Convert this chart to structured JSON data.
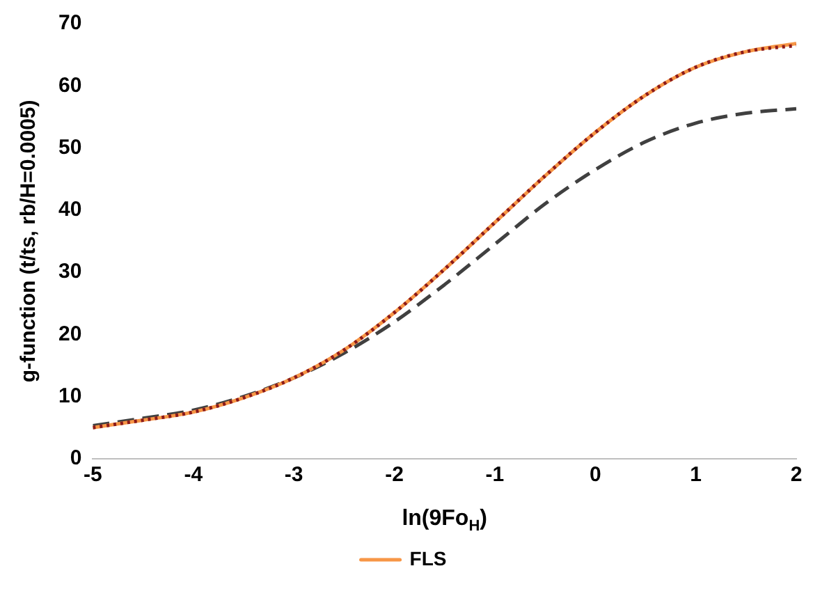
{
  "chart_data": {
    "type": "line",
    "xlabel": "ln(9Fo$_{H}$)",
    "ylabel": "g-function (t/ts, rb/H=0.0005)",
    "xlim": [
      -5,
      2
    ],
    "xticks": [
      -5,
      -4,
      -3,
      -2,
      -1,
      0,
      1,
      2
    ],
    "ylim": [
      0,
      70
    ],
    "yticks": [
      0,
      10,
      20,
      30,
      40,
      50,
      60,
      70
    ],
    "grid": false,
    "legend": "bottom",
    "marker": "none",
    "series": [
      {
        "color": "#404040",
        "line_style": "dashed",
        "x": [
          -5,
          -4.5,
          -4,
          -3.5,
          -3,
          -2.5,
          -2,
          -1.5,
          -1,
          -0.5,
          0,
          0.5,
          1,
          1.5,
          2
        ],
        "values": [
          5.3,
          6.5,
          7.8,
          10,
          13,
          17,
          22,
          28,
          34.5,
          41,
          46.5,
          51,
          54,
          55.6,
          56.3
        ]
      },
      {
        "name": "FLS",
        "color": "#f79646",
        "line_style": "solid",
        "x": [
          -5,
          -4.5,
          -4,
          -3.5,
          -3,
          -2.5,
          -2,
          -1.5,
          -1,
          -0.5,
          0,
          0.5,
          1,
          1.5,
          2
        ],
        "values": [
          5,
          6.2,
          7.5,
          9.8,
          13,
          17.5,
          23.5,
          30.5,
          38,
          45.5,
          52.5,
          58.5,
          63,
          65.5,
          66.8
        ]
      },
      {
        "color": "#8b1a1a",
        "line_style": "dotted",
        "x": [
          -5,
          -4.5,
          -4,
          -3.5,
          -3,
          -2.5,
          -2,
          -1.5,
          -1,
          -0.5,
          0,
          0.5,
          1,
          1.5,
          2
        ],
        "values": [
          5,
          6.2,
          7.5,
          9.8,
          13,
          17.5,
          23.5,
          30.5,
          38,
          45.5,
          52.5,
          58.5,
          63,
          65.5,
          66.5
        ]
      }
    ]
  }
}
